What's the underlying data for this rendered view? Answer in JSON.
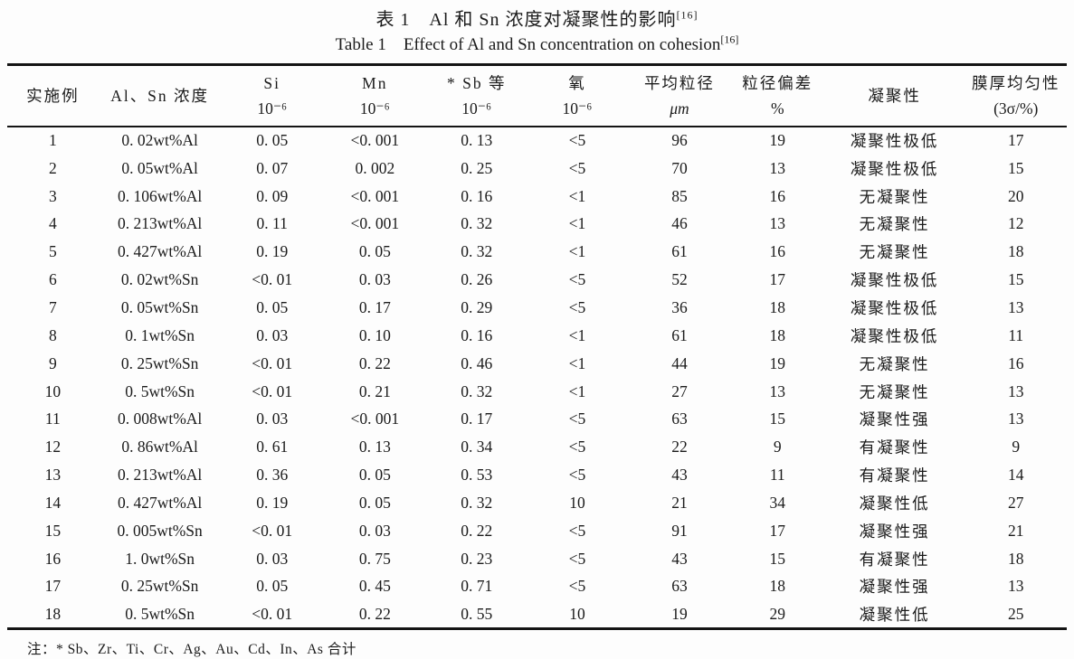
{
  "page": {
    "background": "#fdfdfd",
    "text_color": "#1b1b1b",
    "border_color": "#141414"
  },
  "title": {
    "zh": "表 1　Al 和 Sn 浓度对凝聚性的影响",
    "en": "Table 1　Effect of Al and Sn concentration on cohesion",
    "ref": "[16]"
  },
  "table": {
    "column_keys": [
      "example-no",
      "al-sn-concentration",
      "si",
      "mn",
      "sb-etc",
      "oxygen",
      "avg-particle-size",
      "particle-size-deviation",
      "cohesion",
      "film-thickness-uniformity"
    ],
    "columns": [
      {
        "line1": "实施例",
        "line2": ""
      },
      {
        "line1": "Al、Sn 浓度",
        "line2": ""
      },
      {
        "line1": "Si",
        "line2": "10⁻⁶"
      },
      {
        "line1": "Mn",
        "line2": "10⁻⁶"
      },
      {
        "line1": "* Sb 等",
        "line2": "10⁻⁶"
      },
      {
        "line1": "氧",
        "line2": "10⁻⁶"
      },
      {
        "line1": "平均粒径",
        "line2": "μm"
      },
      {
        "line1": "粒径偏差",
        "line2": "%"
      },
      {
        "line1": "凝聚性",
        "line2": ""
      },
      {
        "line1": "膜厚均匀性",
        "line2": "(3σ/%)"
      }
    ],
    "rows": [
      [
        "1",
        "0. 02wt%Al",
        "0. 05",
        "<0. 001",
        "0. 13",
        "<5",
        "96",
        "19",
        "凝聚性极低",
        "17"
      ],
      [
        "2",
        "0. 05wt%Al",
        "0. 07",
        "0. 002",
        "0. 25",
        "<5",
        "70",
        "13",
        "凝聚性极低",
        "15"
      ],
      [
        "3",
        "0. 106wt%Al",
        "0. 09",
        "<0. 001",
        "0. 16",
        "<1",
        "85",
        "16",
        "无凝聚性",
        "20"
      ],
      [
        "4",
        "0. 213wt%Al",
        "0. 11",
        "<0. 001",
        "0. 32",
        "<1",
        "46",
        "13",
        "无凝聚性",
        "12"
      ],
      [
        "5",
        "0. 427wt%Al",
        "0. 19",
        "0. 05",
        "0. 32",
        "<1",
        "61",
        "16",
        "无凝聚性",
        "18"
      ],
      [
        "6",
        "0. 02wt%Sn",
        "<0. 01",
        "0. 03",
        "0. 26",
        "<5",
        "52",
        "17",
        "凝聚性极低",
        "15"
      ],
      [
        "7",
        "0. 05wt%Sn",
        "0. 05",
        "0. 17",
        "0. 29",
        "<5",
        "36",
        "18",
        "凝聚性极低",
        "13"
      ],
      [
        "8",
        "0. 1wt%Sn",
        "0. 03",
        "0. 10",
        "0. 16",
        "<1",
        "61",
        "18",
        "凝聚性极低",
        "11"
      ],
      [
        "9",
        "0. 25wt%Sn",
        "<0. 01",
        "0. 22",
        "0. 46",
        "<1",
        "44",
        "19",
        "无凝聚性",
        "16"
      ],
      [
        "10",
        "0. 5wt%Sn",
        "<0. 01",
        "0. 21",
        "0. 32",
        "<1",
        "27",
        "13",
        "无凝聚性",
        "13"
      ],
      [
        "11",
        "0. 008wt%Al",
        "0. 03",
        "<0. 001",
        "0. 17",
        "<5",
        "63",
        "15",
        "凝聚性强",
        "13"
      ],
      [
        "12",
        "0. 86wt%Al",
        "0. 61",
        "0. 13",
        "0. 34",
        "<5",
        "22",
        "9",
        "有凝聚性",
        "9"
      ],
      [
        "13",
        "0. 213wt%Al",
        "0. 36",
        "0. 05",
        "0. 53",
        "<5",
        "43",
        "11",
        "有凝聚性",
        "14"
      ],
      [
        "14",
        "0. 427wt%Al",
        "0. 19",
        "0. 05",
        "0. 32",
        "10",
        "21",
        "34",
        "凝聚性低",
        "27"
      ],
      [
        "15",
        "0. 005wt%Sn",
        "<0. 01",
        "0. 03",
        "0. 22",
        "<5",
        "91",
        "17",
        "凝聚性强",
        "21"
      ],
      [
        "16",
        "1. 0wt%Sn",
        "0. 03",
        "0. 75",
        "0. 23",
        "<5",
        "43",
        "15",
        "有凝聚性",
        "18"
      ],
      [
        "17",
        "0. 25wt%Sn",
        "0. 05",
        "0. 45",
        "0. 71",
        "<5",
        "63",
        "18",
        "凝聚性强",
        "13"
      ],
      [
        "18",
        "0. 5wt%Sn",
        "<0. 01",
        "0. 22",
        "0. 55",
        "10",
        "19",
        "29",
        "凝聚性低",
        "25"
      ]
    ]
  },
  "footnote": "注：* Sb、Zr、Ti、Cr、Ag、Au、Cd、In、As 合计"
}
